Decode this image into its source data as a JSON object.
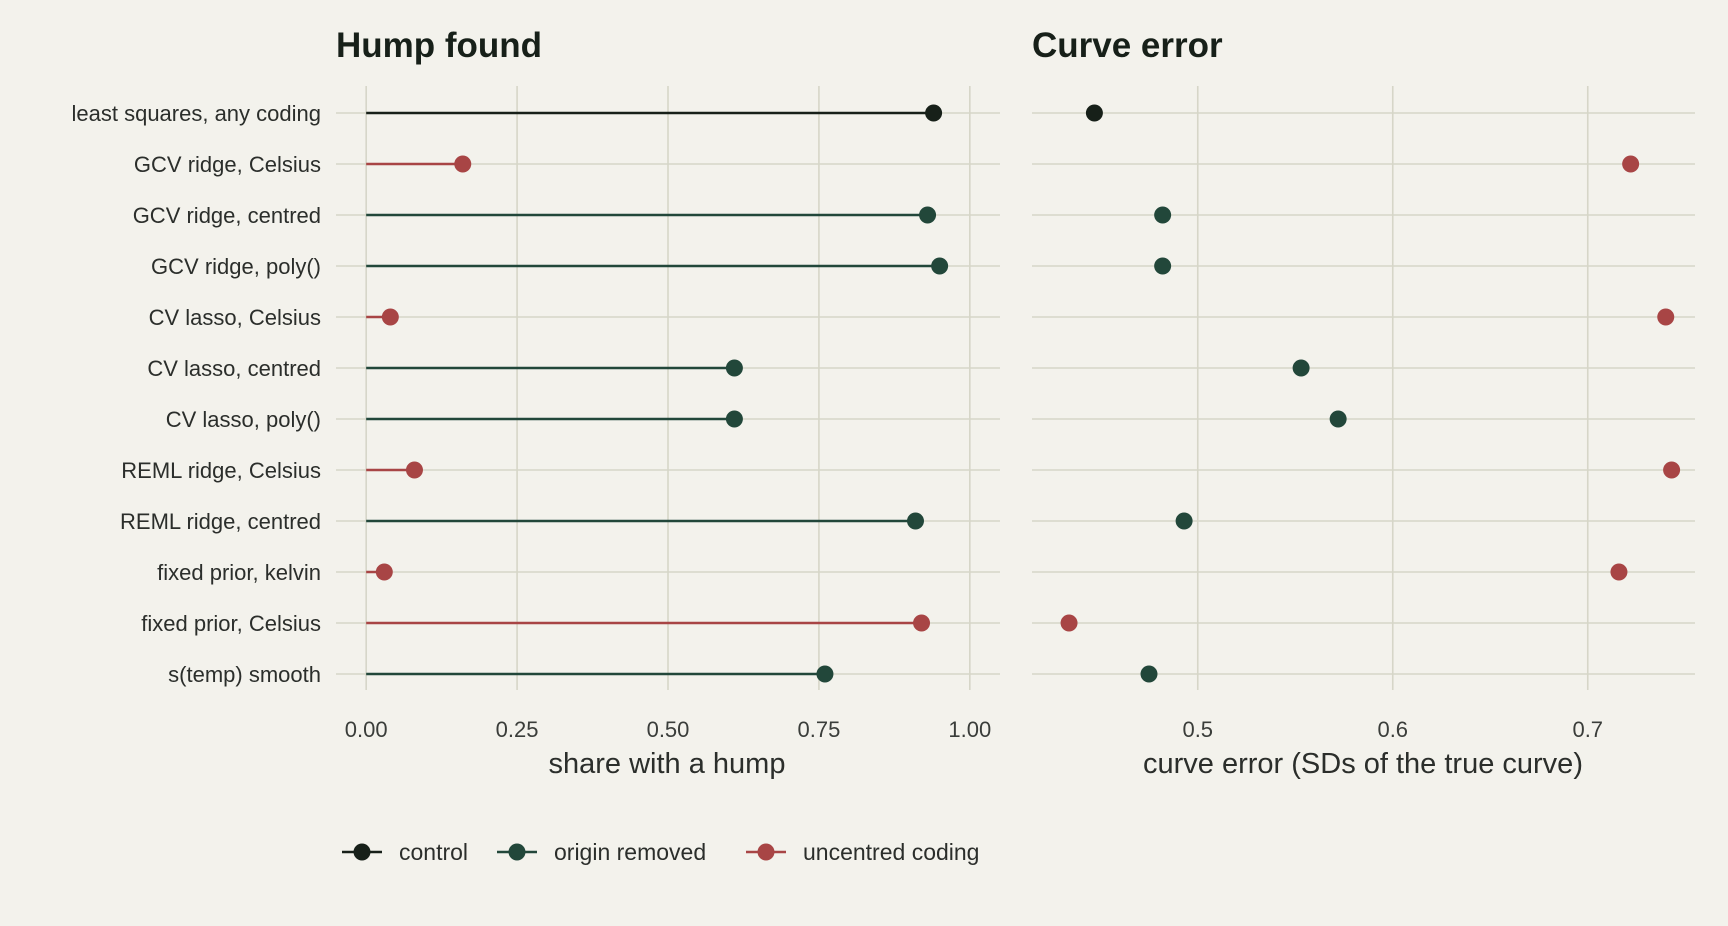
{
  "colors": {
    "background": "#f3f2ec",
    "grid": "#d6d6c8",
    "control": "#172019",
    "origin_removed": "#22473a",
    "uncentred_coding": "#a84545"
  },
  "legend": {
    "items": [
      {
        "key": "control",
        "label": "control"
      },
      {
        "key": "origin_removed",
        "label": "origin removed"
      },
      {
        "key": "uncentred_coding",
        "label": "uncentred coding"
      }
    ],
    "placement": "bottom-left"
  },
  "chart_data": [
    {
      "type": "lollipop",
      "title": "Hump found",
      "xlabel": "share with a hump",
      "ylabel": "",
      "xlim": [
        -0.05,
        1.05
      ],
      "xticks": [
        0.0,
        0.25,
        0.5,
        0.75,
        1.0
      ],
      "xtick_labels": [
        "0.00",
        "0.25",
        "0.50",
        "0.75",
        "1.00"
      ],
      "grid": true,
      "categories": [
        "least squares, any coding",
        "GCV ridge, Celsius",
        "GCV ridge, centred",
        "GCV ridge, poly()",
        "CV lasso, Celsius",
        "CV lasso, centred",
        "CV lasso, poly()",
        "REML ridge, Celsius",
        "REML ridge, centred",
        "fixed prior, kelvin",
        "fixed prior, Celsius",
        "s(temp) smooth"
      ],
      "groups": [
        "control",
        "uncentred_coding",
        "origin_removed",
        "origin_removed",
        "uncentred_coding",
        "origin_removed",
        "origin_removed",
        "uncentred_coding",
        "origin_removed",
        "uncentred_coding",
        "uncentred_coding",
        "origin_removed"
      ],
      "values": [
        0.94,
        0.16,
        0.93,
        0.95,
        0.04,
        0.61,
        0.61,
        0.08,
        0.91,
        0.03,
        0.92,
        0.76
      ]
    },
    {
      "type": "scatter",
      "title": "Curve error",
      "xlabel": "curve error (SDs of the true curve)",
      "ylabel": "",
      "xlim": [
        0.415,
        0.755
      ],
      "xticks": [
        0.5,
        0.6,
        0.7
      ],
      "xtick_labels": [
        "0.5",
        "0.6",
        "0.7"
      ],
      "grid": true,
      "categories": [
        "least squares, any coding",
        "GCV ridge, Celsius",
        "GCV ridge, centred",
        "GCV ridge, poly()",
        "CV lasso, Celsius",
        "CV lasso, centred",
        "CV lasso, poly()",
        "REML ridge, Celsius",
        "REML ridge, centred",
        "fixed prior, kelvin",
        "fixed prior, Celsius",
        "s(temp) smooth"
      ],
      "groups": [
        "control",
        "uncentred_coding",
        "origin_removed",
        "origin_removed",
        "uncentred_coding",
        "origin_removed",
        "origin_removed",
        "uncentred_coding",
        "origin_removed",
        "uncentred_coding",
        "uncentred_coding",
        "origin_removed"
      ],
      "values": [
        0.447,
        0.722,
        0.482,
        0.482,
        0.74,
        0.553,
        0.572,
        0.743,
        0.493,
        0.716,
        0.434,
        0.475
      ]
    }
  ]
}
